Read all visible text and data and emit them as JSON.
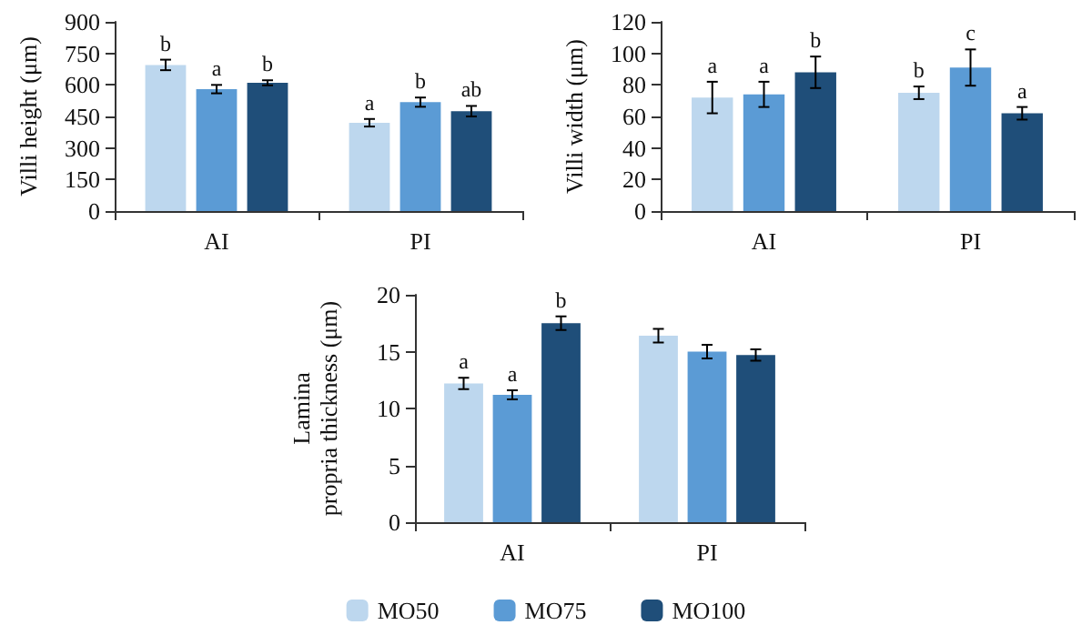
{
  "chart_data": [
    {
      "type": "bar",
      "ylabel": "Villi height (μm)",
      "categories": [
        "AI",
        "PI"
      ],
      "ylim": [
        0,
        900
      ],
      "yticks": [
        0,
        150,
        300,
        450,
        600,
        750,
        900
      ],
      "grid": false,
      "legend": false,
      "series": [
        {
          "color": "#bdd7ee",
          "values": [
            695,
            420
          ],
          "errors": [
            25,
            18
          ],
          "value_labels": [
            "b",
            "a"
          ]
        },
        {
          "color": "#5b9bd5",
          "values": [
            580,
            518
          ],
          "errors": [
            20,
            22
          ],
          "value_labels": [
            "a",
            "b"
          ]
        },
        {
          "color": "#1f4e79",
          "values": [
            610,
            475
          ],
          "errors": [
            12,
            25
          ],
          "value_labels": [
            "b",
            "ab"
          ]
        }
      ]
    },
    {
      "type": "bar",
      "ylabel": "Villi width (μm)",
      "categories": [
        "AI",
        "PI"
      ],
      "ylim": [
        0,
        120
      ],
      "yticks": [
        0,
        20,
        40,
        60,
        80,
        100,
        120
      ],
      "grid": false,
      "legend": false,
      "series": [
        {
          "color": "#bdd7ee",
          "values": [
            72,
            75
          ],
          "errors": [
            10,
            4
          ],
          "value_labels": [
            "a",
            "b"
          ]
        },
        {
          "color": "#5b9bd5",
          "values": [
            74,
            91
          ],
          "errors": [
            8,
            11.5
          ],
          "value_labels": [
            "a",
            "c"
          ]
        },
        {
          "color": "#1f4e79",
          "values": [
            88,
            62
          ],
          "errors": [
            10,
            4
          ],
          "value_labels": [
            "b",
            "a"
          ]
        }
      ]
    },
    {
      "type": "bar",
      "ylabel": "Lamina propria thickness (μm)",
      "categories": [
        "AI",
        "PI"
      ],
      "ylim": [
        0,
        20
      ],
      "yticks": [
        0,
        5,
        10,
        15,
        20
      ],
      "grid": false,
      "legend": "bottom",
      "series": [
        {
          "name": "MO50",
          "color": "#bdd7ee",
          "values": [
            12.2,
            16.4
          ],
          "errors": [
            0.5,
            0.6
          ],
          "value_labels": [
            "a",
            null
          ]
        },
        {
          "name": "MO75",
          "color": "#5b9bd5",
          "values": [
            11.2,
            15.0
          ],
          "errors": [
            0.4,
            0.6
          ],
          "value_labels": [
            "a",
            null
          ]
        },
        {
          "name": "MO100",
          "color": "#1f4e79",
          "values": [
            17.5,
            14.7
          ],
          "errors": [
            0.6,
            0.5
          ],
          "value_labels": [
            "b",
            null
          ]
        }
      ]
    }
  ]
}
